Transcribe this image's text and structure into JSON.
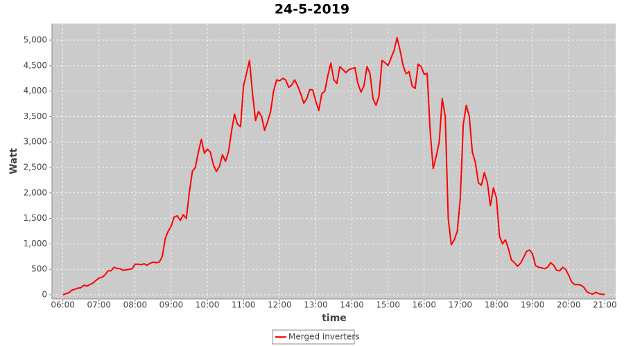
{
  "chart_data": {
    "type": "line",
    "title": "24-5-2019",
    "x_label": "time",
    "y_label": "Watt",
    "xlim": [
      "05:42",
      "21:18"
    ],
    "xticks": [
      "06:00",
      "07:00",
      "08:00",
      "09:00",
      "10:00",
      "11:00",
      "12:00",
      "13:00",
      "14:00",
      "15:00",
      "16:00",
      "17:00",
      "18:00",
      "19:00",
      "20:00",
      "21:00"
    ],
    "ylim": [
      -82,
      5326
    ],
    "yticks": [
      0,
      500,
      {
        "value": 1000,
        "label": "1,000"
      },
      {
        "value": 1500,
        "label": "1,500"
      },
      {
        "value": 2000,
        "label": "2,000"
      },
      {
        "value": 2500,
        "label": "2,500"
      },
      {
        "value": 3000,
        "label": "3,000"
      },
      {
        "value": 3500,
        "label": "3,500"
      },
      {
        "value": 4000,
        "label": "4,000"
      },
      {
        "value": 4500,
        "label": "4,500"
      },
      {
        "value": 5000,
        "label": "5,000"
      }
    ],
    "grid": true,
    "legend": "bottom",
    "x": [
      "06:00",
      "06:05",
      "06:10",
      "06:15",
      "06:20",
      "06:25",
      "06:30",
      "06:35",
      "06:40",
      "06:45",
      "06:50",
      "06:55",
      "07:00",
      "07:05",
      "07:10",
      "07:15",
      "07:20",
      "07:25",
      "07:30",
      "07:35",
      "07:40",
      "07:45",
      "07:50",
      "07:55",
      "08:00",
      "08:05",
      "08:10",
      "08:15",
      "08:20",
      "08:25",
      "08:30",
      "08:35",
      "08:40",
      "08:45",
      "08:50",
      "08:55",
      "09:00",
      "09:05",
      "09:10",
      "09:15",
      "09:20",
      "09:25",
      "09:30",
      "09:35",
      "09:40",
      "09:45",
      "09:50",
      "09:55",
      "10:00",
      "10:05",
      "10:10",
      "10:15",
      "10:20",
      "10:25",
      "10:30",
      "10:35",
      "10:40",
      "10:45",
      "10:50",
      "10:55",
      "11:00",
      "11:05",
      "11:10",
      "11:15",
      "11:20",
      "11:25",
      "11:30",
      "11:35",
      "11:40",
      "11:45",
      "11:50",
      "11:55",
      "12:00",
      "12:05",
      "12:10",
      "12:15",
      "12:20",
      "12:25",
      "12:30",
      "12:35",
      "12:40",
      "12:45",
      "12:50",
      "12:55",
      "13:00",
      "13:05",
      "13:10",
      "13:15",
      "13:20",
      "13:25",
      "13:30",
      "13:35",
      "13:40",
      "13:45",
      "13:50",
      "13:55",
      "14:00",
      "14:05",
      "14:10",
      "14:15",
      "14:20",
      "14:25",
      "14:30",
      "14:35",
      "14:40",
      "14:45",
      "14:50",
      "14:55",
      "15:00",
      "15:05",
      "15:10",
      "15:15",
      "15:20",
      "15:25",
      "15:30",
      "15:35",
      "15:40",
      "15:45",
      "15:50",
      "15:55",
      "16:00",
      "16:05",
      "16:10",
      "16:15",
      "16:20",
      "16:25",
      "16:30",
      "16:35",
      "16:40",
      "16:45",
      "16:50",
      "16:55",
      "17:00",
      "17:05",
      "17:10",
      "17:15",
      "17:20",
      "17:25",
      "17:30",
      "17:35",
      "17:40",
      "17:45",
      "17:50",
      "17:55",
      "18:00",
      "18:05",
      "18:10",
      "18:15",
      "18:20",
      "18:25",
      "18:30",
      "18:35",
      "18:40",
      "18:45",
      "18:50",
      "18:55",
      "19:00",
      "19:05",
      "19:10",
      "19:15",
      "19:20",
      "19:25",
      "19:30",
      "19:35",
      "19:40",
      "19:45",
      "19:50",
      "19:55",
      "20:00",
      "20:05",
      "20:10",
      "20:15",
      "20:20",
      "20:25",
      "20:30",
      "20:35",
      "20:40",
      "20:45",
      "20:50",
      "20:55",
      "21:00"
    ],
    "series": [
      {
        "name": "Merged inverters",
        "color": "#ff0000",
        "values": [
          0,
          20,
          40,
          90,
          110,
          130,
          140,
          190,
          170,
          200,
          230,
          280,
          330,
          340,
          390,
          470,
          470,
          540,
          520,
          510,
          480,
          490,
          500,
          510,
          600,
          600,
          590,
          610,
          580,
          620,
          640,
          630,
          640,
          750,
          1100,
          1250,
          1350,
          1530,
          1550,
          1460,
          1570,
          1500,
          2000,
          2420,
          2500,
          2800,
          3050,
          2780,
          2860,
          2800,
          2550,
          2420,
          2520,
          2750,
          2620,
          2800,
          3200,
          3550,
          3350,
          3300,
          4100,
          4350,
          4600,
          3950,
          3420,
          3600,
          3500,
          3230,
          3400,
          3600,
          4000,
          4220,
          4200,
          4250,
          4220,
          4070,
          4120,
          4220,
          4100,
          3950,
          3760,
          3850,
          4030,
          4020,
          3800,
          3620,
          3950,
          4000,
          4300,
          4550,
          4220,
          4150,
          4480,
          4420,
          4360,
          4420,
          4440,
          4460,
          4150,
          3980,
          4100,
          4480,
          4350,
          3850,
          3720,
          3900,
          4600,
          4560,
          4500,
          4650,
          4800,
          5050,
          4800,
          4500,
          4340,
          4380,
          4100,
          4050,
          4530,
          4480,
          4330,
          4350,
          3200,
          2480,
          2720,
          3000,
          3850,
          3500,
          1500,
          980,
          1080,
          1250,
          1900,
          3350,
          3720,
          3500,
          2800,
          2600,
          2200,
          2150,
          2400,
          2200,
          1750,
          2100,
          1900,
          1150,
          1000,
          1080,
          900,
          680,
          630,
          560,
          620,
          730,
          850,
          880,
          800,
          570,
          540,
          530,
          510,
          540,
          630,
          580,
          480,
          470,
          540,
          500,
          380,
          250,
          200,
          200,
          190,
          150,
          60,
          30,
          10,
          50,
          20,
          10,
          5
        ]
      }
    ]
  }
}
